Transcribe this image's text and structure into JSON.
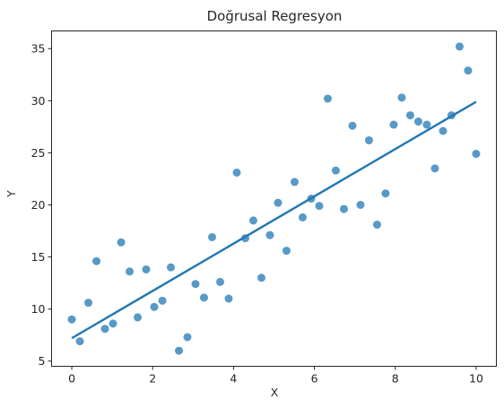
{
  "chart_data": {
    "type": "scatter",
    "title": "Doğrusal Regresyon",
    "xlabel": "X",
    "ylabel": "Y",
    "xlim": [
      -0.5,
      10.5
    ],
    "ylim": [
      4.5,
      36.7
    ],
    "xticks": [
      0,
      2,
      4,
      6,
      8,
      10
    ],
    "yticks": [
      5,
      10,
      15,
      20,
      25,
      30,
      35
    ],
    "grid": false,
    "legend": "none",
    "series": [
      {
        "kind": "scatter",
        "color": "#1f77b4",
        "points": [
          [
            0.0,
            9.0
          ],
          [
            0.2,
            6.9
          ],
          [
            0.41,
            10.6
          ],
          [
            0.61,
            14.6
          ],
          [
            0.82,
            8.1
          ],
          [
            1.02,
            8.6
          ],
          [
            1.22,
            16.4
          ],
          [
            1.43,
            13.6
          ],
          [
            1.63,
            9.2
          ],
          [
            1.84,
            13.8
          ],
          [
            2.04,
            10.2
          ],
          [
            2.24,
            10.8
          ],
          [
            2.45,
            14.0
          ],
          [
            2.65,
            6.0
          ],
          [
            2.86,
            7.3
          ],
          [
            3.06,
            12.4
          ],
          [
            3.27,
            11.1
          ],
          [
            3.47,
            16.9
          ],
          [
            3.67,
            12.6
          ],
          [
            3.88,
            11.0
          ],
          [
            4.08,
            23.1
          ],
          [
            4.29,
            16.8
          ],
          [
            4.49,
            18.5
          ],
          [
            4.69,
            13.0
          ],
          [
            4.9,
            17.1
          ],
          [
            5.1,
            20.2
          ],
          [
            5.31,
            15.6
          ],
          [
            5.51,
            22.2
          ],
          [
            5.71,
            18.8
          ],
          [
            5.92,
            20.6
          ],
          [
            6.12,
            19.9
          ],
          [
            6.33,
            30.2
          ],
          [
            6.53,
            23.3
          ],
          [
            6.73,
            19.6
          ],
          [
            6.94,
            27.6
          ],
          [
            7.14,
            20.0
          ],
          [
            7.35,
            26.2
          ],
          [
            7.55,
            18.1
          ],
          [
            7.76,
            21.1
          ],
          [
            7.96,
            27.7
          ],
          [
            8.16,
            30.3
          ],
          [
            8.37,
            28.6
          ],
          [
            8.57,
            28.0
          ],
          [
            8.78,
            27.7
          ],
          [
            8.98,
            23.5
          ],
          [
            9.18,
            27.1
          ],
          [
            9.39,
            28.6
          ],
          [
            9.59,
            35.2
          ],
          [
            9.8,
            32.9
          ],
          [
            10.0,
            24.9
          ]
        ]
      },
      {
        "kind": "line",
        "color": "#1f77b4",
        "points": [
          [
            0.0,
            7.2
          ],
          [
            10.0,
            29.9
          ]
        ]
      }
    ]
  }
}
